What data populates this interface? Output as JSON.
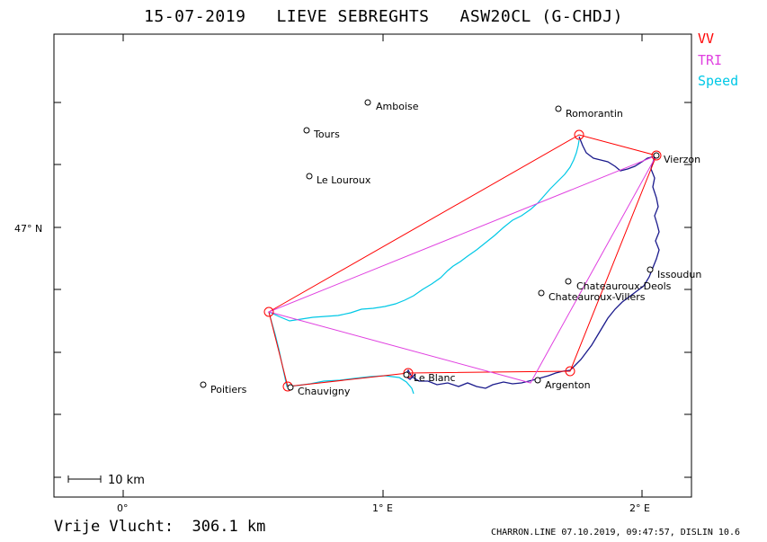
{
  "title": "15-07-2019   LIEVE SEBREGHTS   ASW20CL (G-CHDJ)",
  "legend": [
    {
      "label": "VV",
      "color": "#ff0000"
    },
    {
      "label": "TRI",
      "color": "#e040e0"
    },
    {
      "label": "Speed",
      "color": "#00c8e6"
    }
  ],
  "axes": {
    "y_label": "47° N",
    "x_labels": [
      "0°",
      "1° E",
      "2° E"
    ]
  },
  "scale_label": "10 km",
  "footer": {
    "left": "Vrije Vlucht:  306.1 km",
    "right": "CHARRON.LINE 07.10.2019, 09:47:57, DISLIN 10.6"
  },
  "places": [
    {
      "name": "Amboise"
    },
    {
      "name": "Romorantin"
    },
    {
      "name": "Tours"
    },
    {
      "name": "Le Louroux"
    },
    {
      "name": "Vierzon"
    },
    {
      "name": "Issoudun"
    },
    {
      "name": "Chateauroux-Deols"
    },
    {
      "name": "Chateauroux-Villers"
    },
    {
      "name": "Poitiers"
    },
    {
      "name": "Chauvigny"
    },
    {
      "name": "Le Blanc"
    },
    {
      "name": "Argenton"
    }
  ],
  "colors": {
    "vv": "#ff0000",
    "tri": "#e040e0",
    "speed": "#00c8e6",
    "track": "#1a1a8c",
    "frame": "#000000"
  }
}
